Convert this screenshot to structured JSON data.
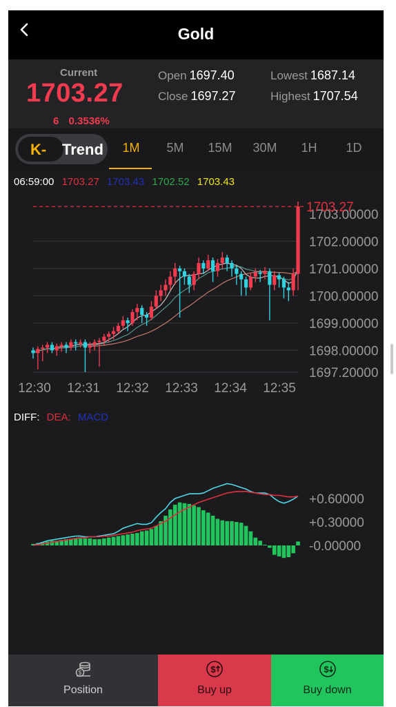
{
  "header": {
    "title": "Gold"
  },
  "quote": {
    "current_label": "Current",
    "current_value": "1703.27",
    "change": "6",
    "change_pct": "0.3536%",
    "open_label": "Open",
    "open": "1697.40",
    "close_label": "Close",
    "close": "1697.27",
    "lowest_label": "Lowest",
    "lowest": "1687.14",
    "highest_label": "Highest",
    "highest": "1707.54"
  },
  "tabs": {
    "toggle_left": "K-",
    "toggle_right": "Trend",
    "periods": [
      "1M",
      "5M",
      "15M",
      "30M",
      "1H",
      "1D"
    ],
    "active": "1M"
  },
  "ma_info": {
    "time": "06:59:00",
    "v1": "1703.27",
    "v2": "1703.43",
    "v3": "1702.52",
    "v4": "1703.43"
  },
  "colors": {
    "up": "#f23b4f",
    "down": "#31d2e0",
    "accent": "#f5b301",
    "buy_up": "#d9394b",
    "buy_down": "#22c45e"
  },
  "chart_data": [
    {
      "type": "candlestick",
      "price_tag": "1703.27",
      "y_ticks": [
        "1703.00000",
        "1702.00000",
        "1701.00000",
        "1700.00000",
        "1699.00000",
        "1698.00000",
        "1697.20000"
      ],
      "y_tick_values": [
        1703.0,
        1702.0,
        1701.0,
        1700.0,
        1699.0,
        1698.0,
        1697.2
      ],
      "x_ticks": [
        "12:30",
        "12:31",
        "12:32",
        "12:33",
        "12:34",
        "12:35"
      ],
      "ylim": [
        1697.2,
        1703.45
      ],
      "close_prices": [
        1697.9,
        1698.05,
        1698.1,
        1698.2,
        1698.0,
        1698.15,
        1698.2,
        1698.1,
        1698.3,
        1698.25,
        1698.3,
        1698.1,
        1698.2,
        1698.3,
        1698.35,
        1698.5,
        1698.6,
        1698.7,
        1698.9,
        1699.1,
        1699.0,
        1699.4,
        1699.55,
        1699.3,
        1699.2,
        1699.6,
        1700.0,
        1700.2,
        1700.4,
        1700.7,
        1701.0,
        1700.9,
        1700.7,
        1700.4,
        1700.8,
        1701.2,
        1701.0,
        1701.3,
        1700.9,
        1701.2,
        1701.4,
        1701.2,
        1701.0,
        1700.8,
        1700.6,
        1700.3,
        1700.7,
        1700.85,
        1700.8,
        1700.9,
        1700.4,
        1700.75,
        1700.6,
        1700.3,
        1700.2,
        1700.8,
        1703.27
      ],
      "open_prices": [
        1698.0,
        1697.9,
        1698.05,
        1698.1,
        1698.2,
        1698.0,
        1698.15,
        1698.2,
        1698.1,
        1698.3,
        1698.25,
        1698.3,
        1698.1,
        1698.2,
        1698.3,
        1698.35,
        1698.5,
        1698.6,
        1698.7,
        1698.9,
        1699.1,
        1699.0,
        1699.4,
        1699.55,
        1699.3,
        1699.2,
        1699.6,
        1700.0,
        1700.2,
        1700.4,
        1700.7,
        1701.0,
        1700.9,
        1700.7,
        1700.4,
        1700.8,
        1701.2,
        1701.0,
        1701.3,
        1700.9,
        1701.2,
        1701.4,
        1701.2,
        1701.0,
        1700.8,
        1700.6,
        1700.3,
        1700.7,
        1700.85,
        1700.8,
        1700.9,
        1700.4,
        1700.75,
        1700.6,
        1700.3,
        1700.2,
        1700.8
      ],
      "high_prices": [
        1698.1,
        1698.15,
        1698.2,
        1698.3,
        1698.3,
        1698.25,
        1698.3,
        1698.3,
        1698.4,
        1698.4,
        1698.4,
        1698.4,
        1698.3,
        1698.4,
        1698.45,
        1698.6,
        1698.7,
        1698.85,
        1699.0,
        1699.25,
        1699.2,
        1699.5,
        1699.7,
        1699.65,
        1699.4,
        1699.8,
        1700.2,
        1700.4,
        1700.6,
        1700.9,
        1701.2,
        1701.1,
        1701.0,
        1700.8,
        1700.9,
        1701.4,
        1701.3,
        1701.5,
        1701.4,
        1701.35,
        1701.6,
        1701.5,
        1701.3,
        1701.1,
        1700.9,
        1700.7,
        1700.85,
        1701.0,
        1700.95,
        1701.05,
        1701.0,
        1700.9,
        1700.85,
        1700.7,
        1700.5,
        1701.0,
        1703.45
      ],
      "low_prices": [
        1697.7,
        1697.3,
        1697.6,
        1697.9,
        1697.9,
        1697.8,
        1697.95,
        1697.9,
        1698.0,
        1698.0,
        1698.1,
        1697.2,
        1697.9,
        1698.0,
        1697.4,
        1698.2,
        1698.3,
        1698.4,
        1698.6,
        1698.8,
        1698.7,
        1698.9,
        1699.1,
        1699.0,
        1698.9,
        1699.1,
        1699.5,
        1699.8,
        1700.0,
        1700.2,
        1700.4,
        1699.2,
        1700.4,
        1700.1,
        1700.2,
        1700.6,
        1700.8,
        1700.9,
        1700.5,
        1700.7,
        1701.0,
        1700.9,
        1700.7,
        1700.4,
        1700.0,
        1700.0,
        1700.2,
        1700.5,
        1700.5,
        1700.6,
        1699.1,
        1700.2,
        1700.3,
        1699.9,
        1699.8,
        1700.0,
        1700.2
      ]
    },
    {
      "type": "bar",
      "series_labels": [
        "DIFF:",
        "DEA:",
        "MACD"
      ],
      "y_ticks": [
        "+0.60000",
        "+0.30000",
        "-0.00000"
      ],
      "y_tick_values": [
        0.6,
        0.3,
        0.0
      ],
      "ylim": [
        -0.2,
        0.85
      ],
      "macd": [
        0.02,
        0.03,
        0.04,
        0.05,
        0.06,
        0.06,
        0.07,
        0.08,
        0.08,
        0.09,
        0.09,
        0.09,
        0.09,
        0.08,
        0.08,
        0.09,
        0.1,
        0.11,
        0.12,
        0.13,
        0.14,
        0.15,
        0.16,
        0.18,
        0.19,
        0.21,
        0.25,
        0.31,
        0.38,
        0.46,
        0.52,
        0.55,
        0.54,
        0.53,
        0.51,
        0.49,
        0.45,
        0.42,
        0.38,
        0.34,
        0.32,
        0.31,
        0.31,
        0.3,
        0.29,
        0.25,
        0.18,
        0.1,
        0.06,
        0.01,
        -0.03,
        -0.12,
        -0.14,
        -0.16,
        -0.15,
        -0.1,
        0.05
      ],
      "diff": [
        0.0,
        0.02,
        0.04,
        0.06,
        0.07,
        0.08,
        0.09,
        0.1,
        0.11,
        0.12,
        0.12,
        0.11,
        0.11,
        0.11,
        0.12,
        0.13,
        0.14,
        0.15,
        0.18,
        0.22,
        0.24,
        0.26,
        0.28,
        0.27,
        0.27,
        0.29,
        0.36,
        0.42,
        0.47,
        0.55,
        0.6,
        0.62,
        0.64,
        0.66,
        0.66,
        0.66,
        0.67,
        0.7,
        0.73,
        0.75,
        0.77,
        0.79,
        0.78,
        0.76,
        0.74,
        0.72,
        0.69,
        0.67,
        0.67,
        0.67,
        0.65,
        0.6,
        0.56,
        0.54,
        0.56,
        0.59,
        0.63
      ],
      "dea": [
        0.0,
        0.01,
        0.02,
        0.03,
        0.04,
        0.05,
        0.06,
        0.07,
        0.08,
        0.09,
        0.1,
        0.1,
        0.11,
        0.11,
        0.11,
        0.12,
        0.12,
        0.13,
        0.14,
        0.15,
        0.16,
        0.17,
        0.19,
        0.2,
        0.21,
        0.22,
        0.25,
        0.28,
        0.31,
        0.35,
        0.39,
        0.43,
        0.46,
        0.49,
        0.52,
        0.55,
        0.57,
        0.59,
        0.61,
        0.63,
        0.65,
        0.67,
        0.68,
        0.69,
        0.69,
        0.69,
        0.68,
        0.67,
        0.66,
        0.65,
        0.65,
        0.64,
        0.64,
        0.63,
        0.62,
        0.62,
        0.63
      ]
    }
  ],
  "bottom": {
    "position_label": "Position",
    "buy_up_label": "Buy up",
    "buy_down_label": "Buy down"
  }
}
